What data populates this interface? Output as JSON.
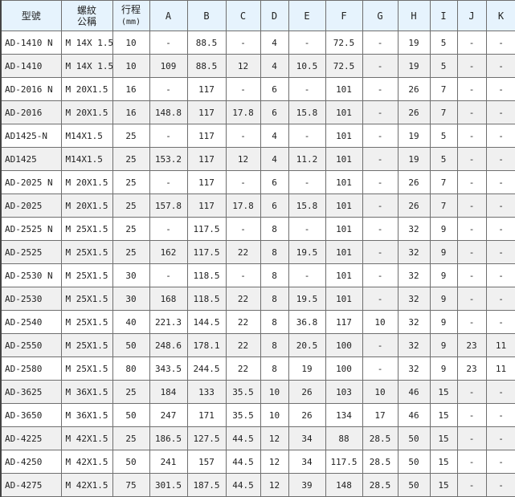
{
  "headers": [
    "型號",
    "螺紋公稱",
    "行程(mm)",
    "A",
    "B",
    "C",
    "D",
    "E",
    "F",
    "G",
    "H",
    "I",
    "J",
    "K"
  ],
  "header_lines": {
    "thread": [
      "螺紋",
      "公稱"
    ],
    "stroke": [
      "行程",
      "(mm)"
    ]
  },
  "rows": [
    [
      "AD-1410 N",
      "M 14X 1.5",
      "10",
      "-",
      "88.5",
      "-",
      "4",
      "-",
      "72.5",
      "-",
      "19",
      "5",
      "-",
      "-"
    ],
    [
      "AD-1410",
      "M 14X 1.5",
      "10",
      "109",
      "88.5",
      "12",
      "4",
      "10.5",
      "72.5",
      "-",
      "19",
      "5",
      "-",
      "-"
    ],
    [
      "AD-2016 N",
      "M 20X1.5",
      "16",
      "-",
      "117",
      "-",
      "6",
      "-",
      "101",
      "-",
      "26",
      "7",
      "-",
      "-"
    ],
    [
      "AD-2016",
      "M 20X1.5",
      "16",
      "148.8",
      "117",
      "17.8",
      "6",
      "15.8",
      "101",
      "-",
      "26",
      "7",
      "-",
      "-"
    ],
    [
      "AD1425-N",
      "M14X1.5",
      "25",
      "-",
      "117",
      "-",
      "4",
      "-",
      "101",
      "-",
      "19",
      "5",
      "-",
      "-"
    ],
    [
      "AD1425",
      "M14X1.5",
      "25",
      "153.2",
      "117",
      "12",
      "4",
      "11.2",
      "101",
      "-",
      "19",
      "5",
      "-",
      "-"
    ],
    [
      "AD-2025 N",
      "M 20X1.5",
      "25",
      "-",
      "117",
      "-",
      "6",
      "-",
      "101",
      "-",
      "26",
      "7",
      "-",
      "-"
    ],
    [
      "AD-2025",
      "M 20X1.5",
      "25",
      "157.8",
      "117",
      "17.8",
      "6",
      "15.8",
      "101",
      "-",
      "26",
      "7",
      "-",
      "-"
    ],
    [
      "AD-2525 N",
      "M 25X1.5",
      "25",
      "-",
      "117.5",
      "-",
      "8",
      "-",
      "101",
      "-",
      "32",
      "9",
      "-",
      "-"
    ],
    [
      "AD-2525",
      "M 25X1.5",
      "25",
      "162",
      "117.5",
      "22",
      "8",
      "19.5",
      "101",
      "-",
      "32",
      "9",
      "-",
      "-"
    ],
    [
      "AD-2530 N",
      "M 25X1.5",
      "30",
      "-",
      "118.5",
      "-",
      "8",
      "-",
      "101",
      "-",
      "32",
      "9",
      "-",
      "-"
    ],
    [
      "AD-2530",
      "M 25X1.5",
      "30",
      "168",
      "118.5",
      "22",
      "8",
      "19.5",
      "101",
      "-",
      "32",
      "9",
      "-",
      "-"
    ],
    [
      "AD-2540",
      "M 25X1.5",
      "40",
      "221.3",
      "144.5",
      "22",
      "8",
      "36.8",
      "117",
      "10",
      "32",
      "9",
      "-",
      "-"
    ],
    [
      "AD-2550",
      "M 25X1.5",
      "50",
      "248.6",
      "178.1",
      "22",
      "8",
      "20.5",
      "100",
      "-",
      "32",
      "9",
      "23",
      "11"
    ],
    [
      "AD-2580",
      "M 25X1.5",
      "80",
      "343.5",
      "244.5",
      "22",
      "8",
      "19",
      "100",
      "-",
      "32",
      "9",
      "23",
      "11"
    ],
    [
      "AD-3625",
      "M 36X1.5",
      "25",
      "184",
      "133",
      "35.5",
      "10",
      "26",
      "103",
      "10",
      "46",
      "15",
      "-",
      "-"
    ],
    [
      "AD-3650",
      "M 36X1.5",
      "50",
      "247",
      "171",
      "35.5",
      "10",
      "26",
      "134",
      "17",
      "46",
      "15",
      "-",
      "-"
    ],
    [
      "AD-4225",
      "M 42X1.5",
      "25",
      "186.5",
      "127.5",
      "44.5",
      "12",
      "34",
      "88",
      "28.5",
      "50",
      "15",
      "-",
      "-"
    ],
    [
      "AD-4250",
      "M 42X1.5",
      "50",
      "241",
      "157",
      "44.5",
      "12",
      "34",
      "117.5",
      "28.5",
      "50",
      "15",
      "-",
      "-"
    ],
    [
      "AD-4275",
      "M 42X1.5",
      "75",
      "301.5",
      "187.5",
      "44.5",
      "12",
      "39",
      "148",
      "28.5",
      "50",
      "15",
      "-",
      "-"
    ]
  ],
  "colors": {
    "header_bg": "#e6f3fd",
    "alt_row_bg": "#f0f0f0",
    "border": "#6f6f6f"
  }
}
